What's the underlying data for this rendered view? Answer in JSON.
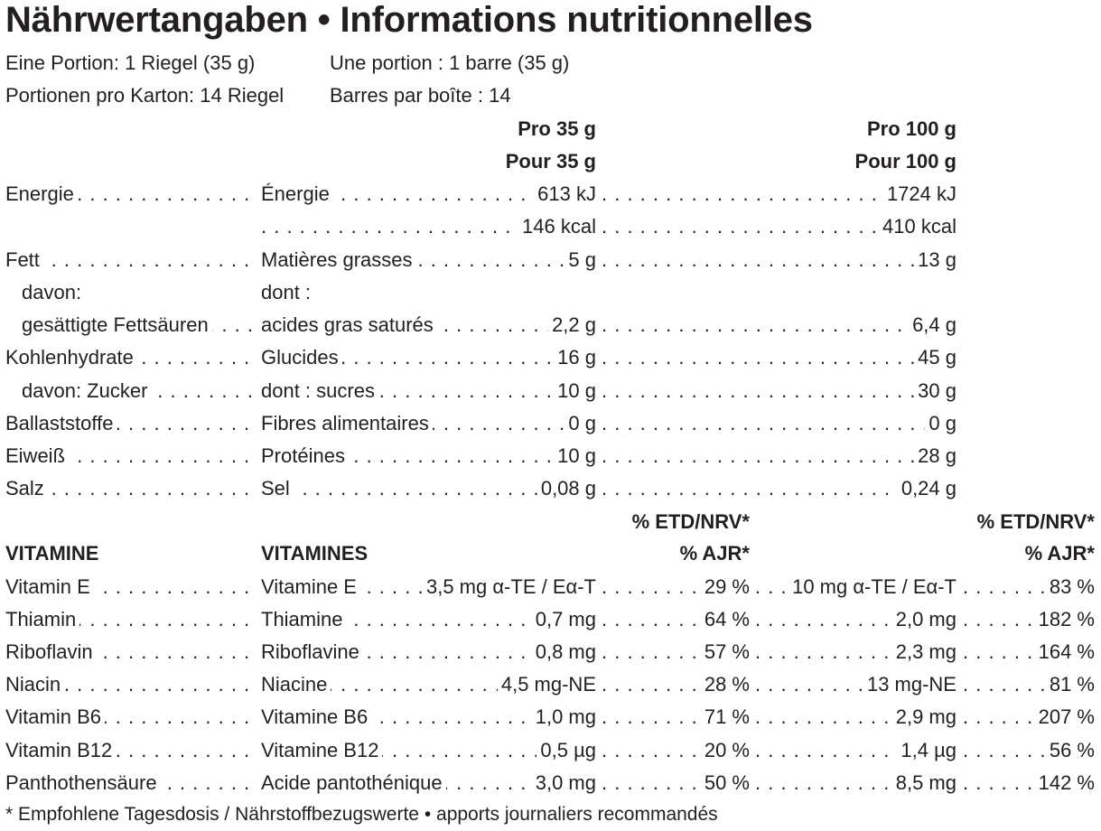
{
  "title": "Nährwertangaben • Informations nutritionnelles",
  "serving": {
    "de_portion": "Eine Portion: 1 Riegel (35 g)",
    "fr_portion": "Une portion : 1 barre (35 g)",
    "de_count": "Portionen pro Karton: 14 Riegel",
    "fr_count": "Barres par boîte : 14"
  },
  "headers": {
    "per35_de": "Pro 35 g",
    "per35_fr": "Pour 35 g",
    "per100_de": "Pro 100 g",
    "per100_fr": "Pour 100 g",
    "pct_a": "% ETD/NRV*",
    "pct_b": "% AJR*",
    "vitamins_de": "VITAMINE",
    "vitamins_fr": "VITAMINES"
  },
  "nutrients": [
    {
      "de": "Energie",
      "fr": "Énergie",
      "v35": "613 kJ",
      "v100": "1724 kJ"
    },
    {
      "de": "",
      "fr": "",
      "v35": "146 kcal",
      "v100": "410 kcal"
    },
    {
      "de": "Fett",
      "fr": "Matières grasses",
      "v35": "5 g",
      "v100": "13 g"
    },
    {
      "de": "davon:",
      "fr": "dont :",
      "v35": "",
      "v100": ""
    },
    {
      "de": "gesättigte Fettsäuren",
      "fr": "acides gras saturés",
      "v35": "2,2 g",
      "v100": "6,4 g"
    },
    {
      "de": "Kohlenhydrate",
      "fr": "Glucides",
      "v35": "16 g",
      "v100": "45 g"
    },
    {
      "de": "davon: Zucker",
      "fr": "dont : sucres",
      "v35": "10 g",
      "v100": "30 g"
    },
    {
      "de": "Ballaststoffe",
      "fr": "Fibres alimentaires",
      "v35": "0 g",
      "v100": "0 g"
    },
    {
      "de": "Eiweiß",
      "fr": "Protéines",
      "v35": "10 g",
      "v100": "28 g"
    },
    {
      "de": "Salz",
      "fr": "Sel",
      "v35": "0,08 g",
      "v100": "0,24 g"
    }
  ],
  "vitamins": [
    {
      "de": "Vitamin E",
      "fr": "Vitamine E",
      "v35": "3,5 mg α-TE / Eα-T",
      "p35": "29 %",
      "v100": "10 mg α-TE / Eα-T",
      "p100": "83 %"
    },
    {
      "de": "Thiamin",
      "fr": "Thiamine",
      "v35": "0,7 mg",
      "p35": "64 %",
      "v100": "2,0 mg",
      "p100": "182 %"
    },
    {
      "de": "Riboflavin",
      "fr": "Riboflavine",
      "v35": "0,8 mg",
      "p35": "57 %",
      "v100": "2,3 mg",
      "p100": "164 %"
    },
    {
      "de": "Niacin",
      "fr": "Niacine",
      "v35": "4,5 mg-NE",
      "p35": "28 %",
      "v100": "13 mg-NE",
      "p100": "81 %"
    },
    {
      "de": "Vitamin B6",
      "fr": "Vitamine B6",
      "v35": "1,0 mg",
      "p35": "71 %",
      "v100": "2,9 mg",
      "p100": "207 %"
    },
    {
      "de": "Vitamin B12",
      "fr": "Vitamine B12",
      "v35": "0,5 µg",
      "p35": "20 %",
      "v100": "1,4 µg",
      "p100": "56 %"
    },
    {
      "de": "Panthothensäure",
      "fr": "Acide pantothénique",
      "v35": "3,0 mg",
      "p35": "50 %",
      "v100": "8,5 mg",
      "p100": "142 %"
    }
  ],
  "footnote": "* Empfohlene Tagesdosis / Nährstoffbezugswerte • apports journaliers recommandés"
}
